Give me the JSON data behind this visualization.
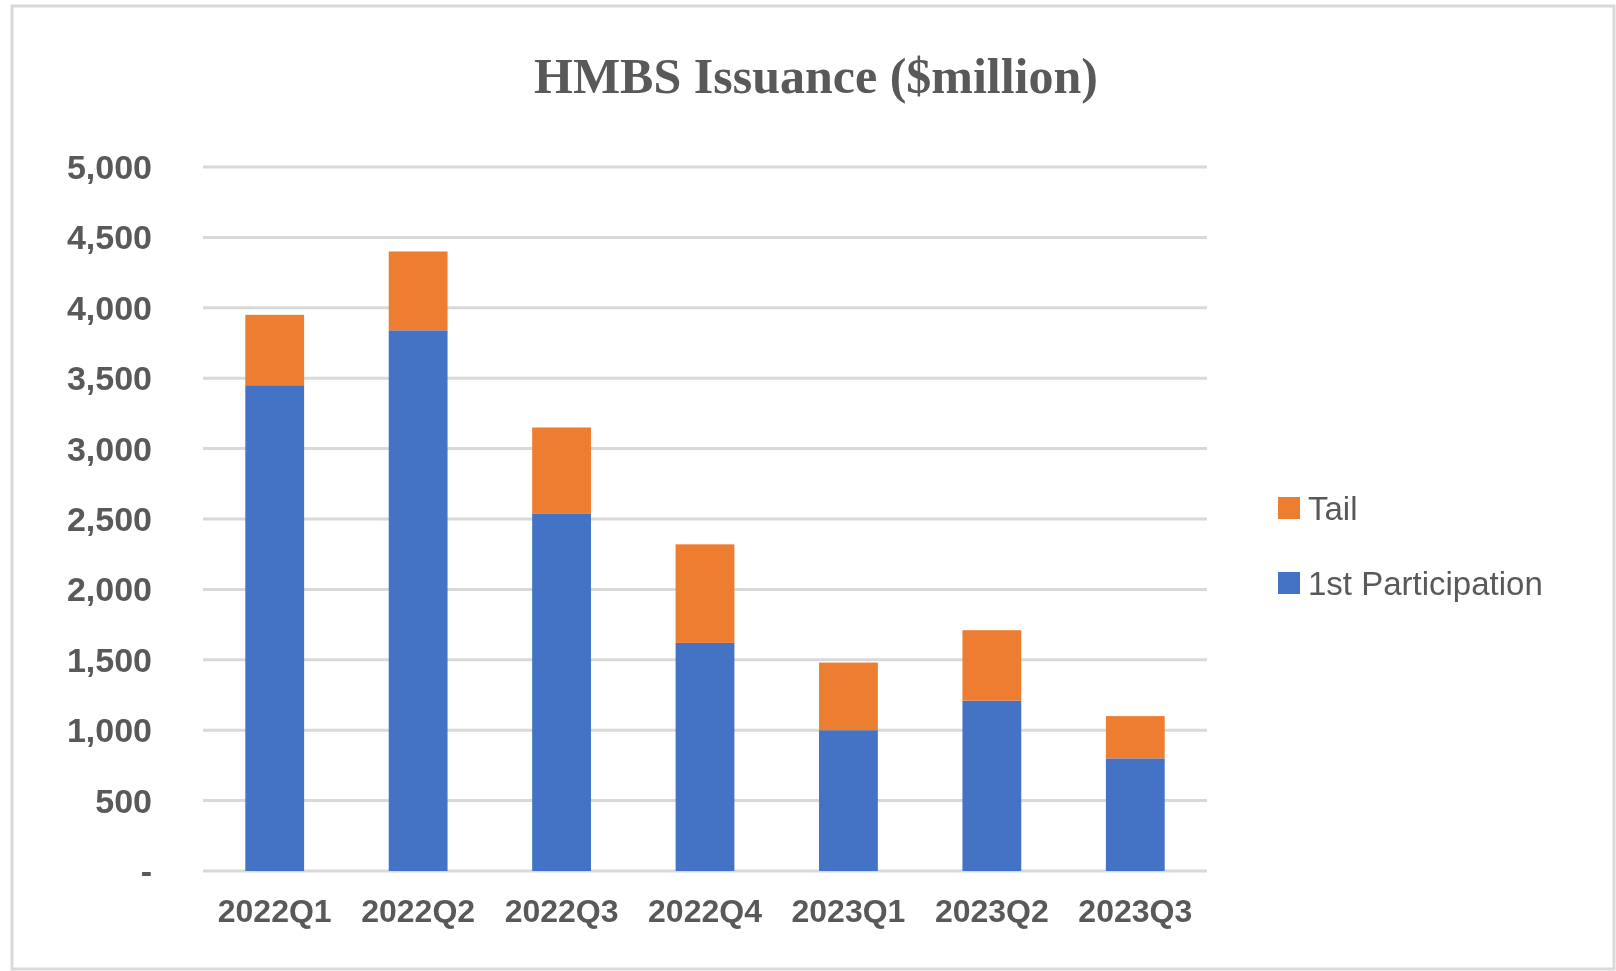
{
  "chart_data": {
    "type": "bar",
    "title": "HMBS Issuance ($million)",
    "categories": [
      "2022Q1",
      "2022Q2",
      "2022Q3",
      "2022Q4",
      "2023Q1",
      "2023Q2",
      "2023Q3"
    ],
    "series": [
      {
        "name": "1st Participation",
        "color": "#4472c4",
        "values": [
          3450,
          3840,
          2540,
          1620,
          1000,
          1210,
          800
        ]
      },
      {
        "name": "Tail",
        "color": "#ed7d31",
        "values": [
          500,
          560,
          610,
          700,
          480,
          500,
          300
        ]
      }
    ],
    "stacked": true,
    "ylim": [
      0,
      5000
    ],
    "yticks": [
      {
        "value": 0,
        "label": "-"
      },
      500,
      {
        "value": 1000,
        "label": "1,000"
      },
      {
        "value": 1500,
        "label": "1,500"
      },
      {
        "value": 2000,
        "label": "2,000"
      },
      {
        "value": 2500,
        "label": "2,500"
      },
      {
        "value": 3000,
        "label": "3,000"
      },
      {
        "value": 3500,
        "label": "3,500"
      },
      {
        "value": 4000,
        "label": "4,000"
      },
      {
        "value": 4500,
        "label": "4,500"
      },
      {
        "value": 5000,
        "label": "5,000"
      }
    ],
    "grid": "y",
    "legend": "right"
  }
}
